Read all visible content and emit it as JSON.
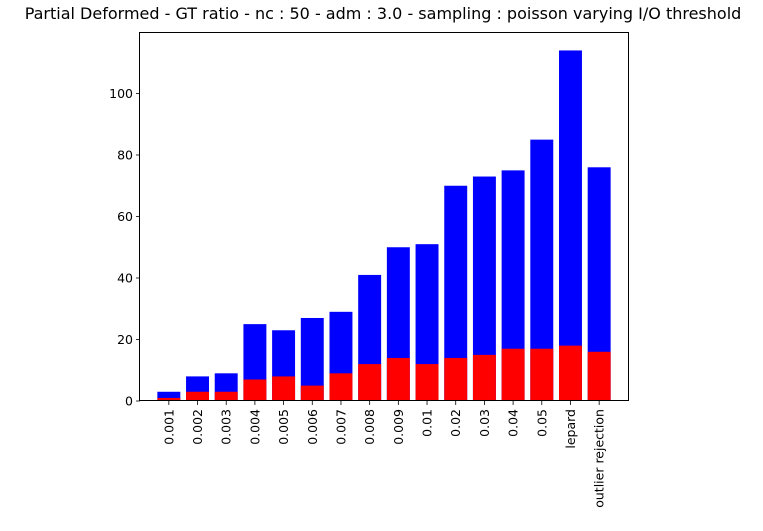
{
  "chart_data": {
    "type": "bar",
    "title": "Partial Deformed - GT ratio - nc : 50 - adm : 3.0 - sampling : poisson varying I/O threshold",
    "xlabel": "",
    "ylabel": "",
    "categories": [
      "0.001",
      "0.002",
      "0.003",
      "0.004",
      "0.005",
      "0.006",
      "0.007",
      "0.008",
      "0.009",
      "0.01",
      "0.02",
      "0.03",
      "0.04",
      "0.05",
      "lepard",
      "outlier rejection"
    ],
    "series": [
      {
        "color": "#0000ff",
        "values": [
          3,
          8,
          9,
          25,
          23,
          27,
          29,
          41,
          50,
          51,
          70,
          73,
          75,
          85,
          114,
          76
        ]
      },
      {
        "color": "#ff0000",
        "values": [
          1,
          3,
          3,
          7,
          8,
          5,
          9,
          12,
          14,
          12,
          14,
          15,
          17,
          17,
          18,
          16
        ]
      }
    ],
    "overlaid": true,
    "ylim": [
      0,
      120
    ],
    "yticks": [
      0,
      20,
      40,
      60,
      80,
      100
    ],
    "grid": false,
    "legend": "none"
  }
}
